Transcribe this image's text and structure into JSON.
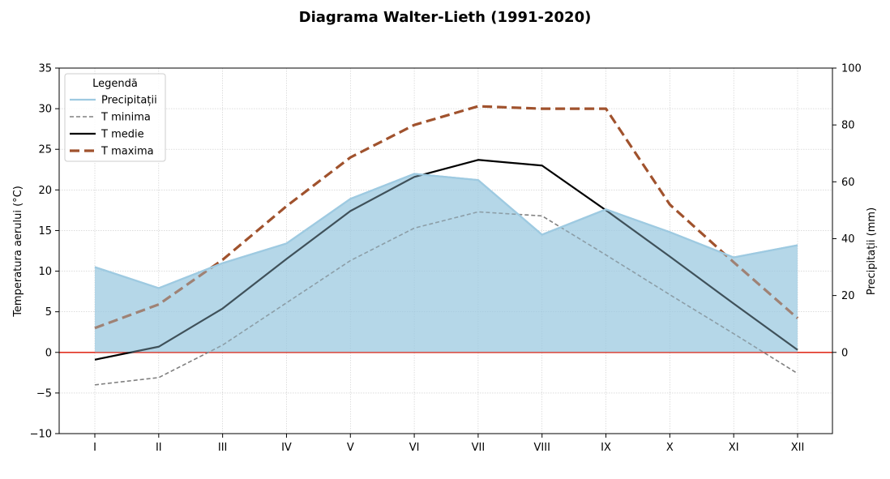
{
  "chart_data": {
    "type": "line",
    "title": "Diagrama Walter-Lieth (1991-2020)",
    "categories": [
      "I",
      "II",
      "III",
      "IV",
      "V",
      "VI",
      "VII",
      "VIII",
      "IX",
      "X",
      "XI",
      "XII"
    ],
    "ylabel": "Temperatura aerului (°C)",
    "y2label": "Precipitații (mm)",
    "ylim": [
      -10,
      35
    ],
    "y2lim": [
      -28.57,
      100
    ],
    "yticks": [
      -10,
      -5,
      0,
      5,
      10,
      15,
      20,
      25,
      30,
      35
    ],
    "y2ticks": [
      0,
      20,
      40,
      60,
      80,
      100
    ],
    "grid": true,
    "legend": {
      "title": "Legendă",
      "placement": "top-left"
    },
    "series": [
      {
        "name": "Precipitații",
        "axis": "right",
        "fill": true,
        "color": "#9ecae1",
        "style": "solid",
        "values": [
          30,
          22.6,
          31.4,
          38.3,
          54,
          62.8,
          60.6,
          41.4,
          50.3,
          42.3,
          33.4,
          37.7
        ]
      },
      {
        "name": "T minima",
        "axis": "left",
        "color": "#808080",
        "style": "dashed-thin",
        "values": [
          -4,
          -3.1,
          0.9,
          6.1,
          11.3,
          15.3,
          17.3,
          16.8,
          12,
          7.1,
          2.3,
          -2.6
        ]
      },
      {
        "name": "T medie",
        "axis": "left",
        "color": "#000000",
        "style": "solid",
        "values": [
          -0.9,
          0.7,
          5.4,
          11.5,
          17.4,
          21.6,
          23.7,
          23,
          17.5,
          11.8,
          6,
          0.3
        ]
      },
      {
        "name": "T maxima",
        "axis": "left",
        "color": "#a0522d",
        "style": "dashed-thick",
        "values": [
          3,
          5.9,
          11.4,
          18,
          24,
          28,
          30.3,
          30,
          30,
          18.2,
          11.1,
          4.2
        ]
      }
    ],
    "reference_line": {
      "y": 0,
      "color": "#e03020"
    }
  }
}
